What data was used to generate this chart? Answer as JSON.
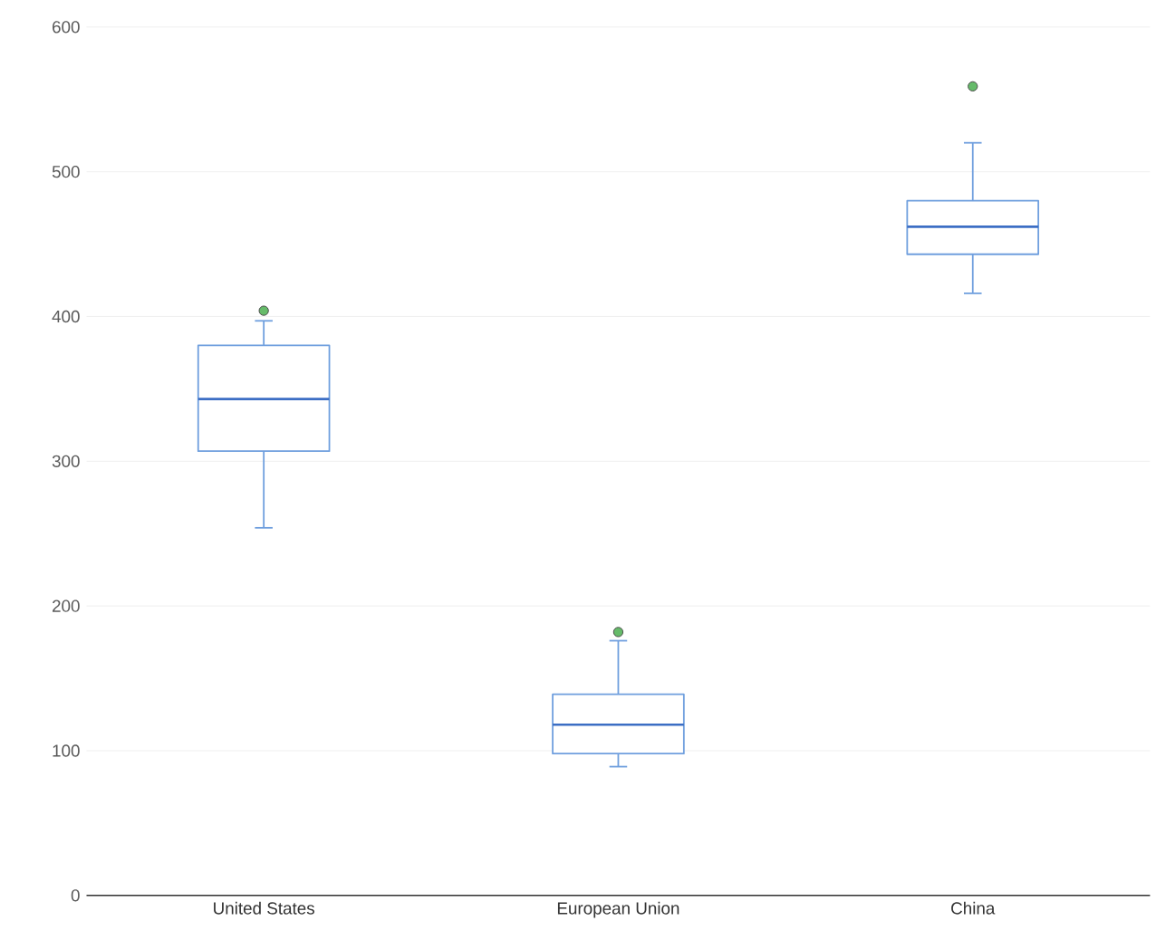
{
  "chart_data": {
    "type": "box",
    "categories": [
      "United States",
      "European Union",
      "China"
    ],
    "boxes": [
      {
        "low": 254,
        "q1": 307,
        "median": 343,
        "q3": 380,
        "high": 397,
        "outliers": [
          404
        ]
      },
      {
        "low": 89,
        "q1": 98,
        "median": 118,
        "q3": 139,
        "high": 176,
        "outliers": [
          182
        ]
      },
      {
        "low": 416,
        "q1": 443,
        "median": 462,
        "q3": 480,
        "high": 520,
        "outliers": [
          559
        ]
      }
    ],
    "color": "#6f9fde",
    "ylim": [
      0,
      600
    ],
    "yticks": [
      0,
      100,
      200,
      300,
      400,
      500,
      600
    ],
    "grid": "y"
  }
}
